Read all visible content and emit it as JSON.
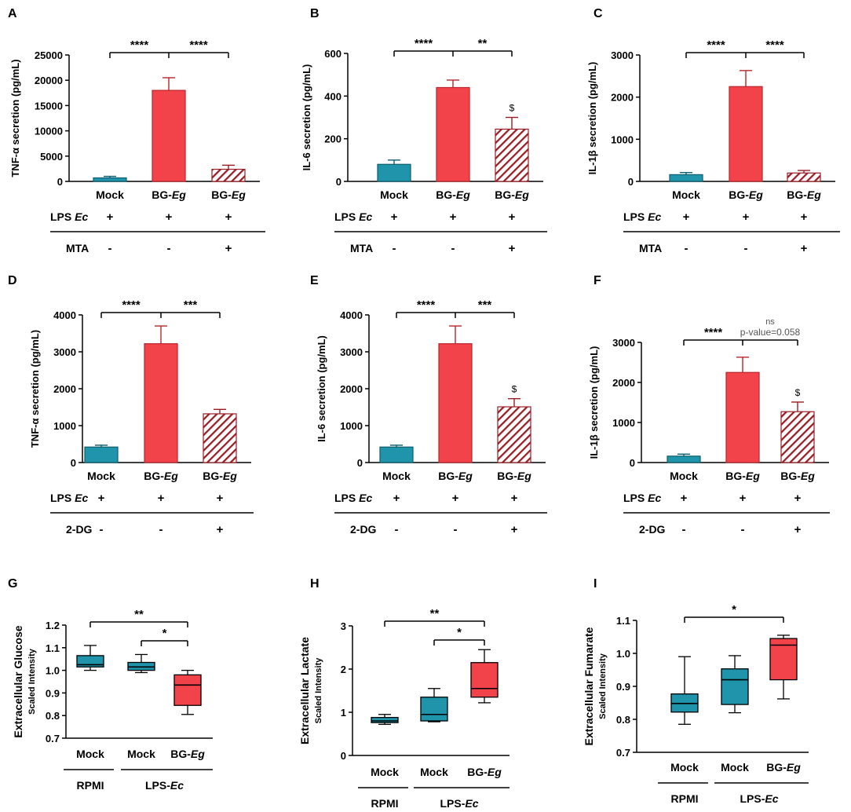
{
  "colors": {
    "mock": "#1f94ab",
    "bg": "#f3434a",
    "hatch": "#9a1d24",
    "axis": "#000000",
    "ns": "#555555"
  },
  "panel_letters": [
    "A",
    "B",
    "C",
    "D",
    "E",
    "F",
    "G",
    "H",
    "I"
  ],
  "row_labels": {
    "lps": "LPS",
    "lps_italic": "Ec",
    "mta": "MTA",
    "dg": "2-DG",
    "plus": "+",
    "minus": "-",
    "rpmi": "RPMI",
    "lps_group": "LPS-",
    "lps_group_italic": "Ec"
  },
  "chart_data": [
    {
      "letter": "A",
      "type": "bar",
      "ylabel": "TNF-α secretion (pg/mL)",
      "ylim": [
        0,
        25000
      ],
      "ticks": [
        0,
        5000,
        10000,
        15000,
        20000,
        25000
      ],
      "categories": [
        "Mock",
        "BG-Eg",
        "BG-Eg"
      ],
      "values": [
        700,
        18000,
        2400
      ],
      "errors": [
        300,
        2500,
        800
      ],
      "significance": [
        "****",
        "****"
      ],
      "dollar": false,
      "ns_text": "",
      "pvalue_text": "",
      "treatment": "MTA",
      "treatment_signs": [
        "-",
        "-",
        "+"
      ],
      "lps_signs": [
        "+",
        "+",
        "+"
      ]
    },
    {
      "letter": "B",
      "type": "bar",
      "ylabel": "IL-6 secretion (pg/mL)",
      "ylim": [
        0,
        600
      ],
      "ticks": [
        0,
        200,
        400,
        600
      ],
      "categories": [
        "Mock",
        "BG-Eg",
        "BG-Eg"
      ],
      "values": [
        80,
        440,
        245
      ],
      "errors": [
        20,
        35,
        55
      ],
      "significance": [
        "****",
        "**"
      ],
      "dollar": true,
      "ns_text": "",
      "pvalue_text": "",
      "treatment": "MTA",
      "treatment_signs": [
        "-",
        "-",
        "+"
      ],
      "lps_signs": [
        "+",
        "+",
        "+"
      ]
    },
    {
      "letter": "C",
      "type": "bar",
      "ylabel": "IL-1β secretion (pg/mL)",
      "ylim": [
        0,
        3000
      ],
      "ticks": [
        0,
        1000,
        2000,
        3000
      ],
      "categories": [
        "Mock",
        "BG-Eg",
        "BG-Eg"
      ],
      "values": [
        160,
        2250,
        200
      ],
      "errors": [
        50,
        380,
        60
      ],
      "significance": [
        "****",
        "****"
      ],
      "dollar": false,
      "ns_text": "",
      "pvalue_text": "",
      "treatment": "MTA",
      "treatment_signs": [
        "-",
        "-",
        "+"
      ],
      "lps_signs": [
        "+",
        "+",
        "+"
      ]
    },
    {
      "letter": "D",
      "type": "bar",
      "ylabel": "TNF-α secretion (pg/mL)",
      "ylim": [
        0,
        4000
      ],
      "ticks": [
        0,
        1000,
        2000,
        3000,
        4000
      ],
      "categories": [
        "Mock",
        "BG-Eg",
        "BG-Eg"
      ],
      "values": [
        420,
        3220,
        1320
      ],
      "errors": [
        50,
        480,
        120
      ],
      "significance": [
        "****",
        "***"
      ],
      "dollar": false,
      "ns_text": "",
      "pvalue_text": "",
      "treatment": "2-DG",
      "treatment_signs": [
        "-",
        "-",
        "+"
      ],
      "lps_signs": [
        "+",
        "+",
        "+"
      ]
    },
    {
      "letter": "E",
      "type": "bar",
      "ylabel": "IL-6 secretion (pg/mL)",
      "ylim": [
        0,
        4000
      ],
      "ticks": [
        0,
        1000,
        2000,
        3000,
        4000
      ],
      "categories": [
        "Mock",
        "BG-Eg",
        "BG-Eg"
      ],
      "values": [
        420,
        3220,
        1510
      ],
      "errors": [
        50,
        480,
        220
      ],
      "significance": [
        "****",
        "***"
      ],
      "dollar": true,
      "ns_text": "",
      "pvalue_text": "",
      "treatment": "2-DG",
      "treatment_signs": [
        "-",
        "-",
        "+"
      ],
      "lps_signs": [
        "+",
        "+",
        "+"
      ]
    },
    {
      "letter": "F",
      "type": "bar",
      "ylabel": "IL-1β secretion (pg/mL)",
      "ylim": [
        0,
        3000
      ],
      "ticks": [
        0,
        1000,
        2000,
        3000
      ],
      "categories": [
        "Mock",
        "BG-Eg",
        "BG-Eg"
      ],
      "values": [
        160,
        2250,
        1270
      ],
      "errors": [
        50,
        380,
        240
      ],
      "significance": [
        "****",
        ""
      ],
      "dollar": true,
      "ns_text": "ns",
      "pvalue_text": "p-value=0.058",
      "treatment": "2-DG",
      "treatment_signs": [
        "-",
        "-",
        "+"
      ],
      "lps_signs": [
        "+",
        "+",
        "+"
      ]
    },
    {
      "letter": "G",
      "type": "box",
      "ylabel": "Extracellular Glucose",
      "ylabel2": "Scaled Intensity",
      "ylim": [
        0.7,
        1.2
      ],
      "ticks": [
        "0.7",
        "0.8",
        "0.9",
        "1.0",
        "1.1",
        "1.2"
      ],
      "categories": [
        "Mock",
        "Mock",
        "BG-Eg"
      ],
      "boxes": [
        {
          "min": 1.0,
          "q1": 1.015,
          "median": 1.025,
          "q3": 1.065,
          "max": 1.11
        },
        {
          "min": 0.99,
          "q1": 1.0,
          "median": 1.015,
          "q3": 1.035,
          "max": 1.07
        },
        {
          "min": 0.805,
          "q1": 0.845,
          "median": 0.935,
          "q3": 0.98,
          "max": 1.0
        }
      ],
      "significance": [
        "**",
        "*"
      ]
    },
    {
      "letter": "H",
      "type": "box",
      "ylabel": "Extracellular Lactate",
      "ylabel2": "Scaled Intensity",
      "ylim": [
        0,
        3
      ],
      "ticks": [
        "0",
        "1",
        "2",
        "3"
      ],
      "categories": [
        "Mock",
        "Mock",
        "BG-Eg"
      ],
      "boxes": [
        {
          "min": 0.72,
          "q1": 0.76,
          "median": 0.8,
          "q3": 0.88,
          "max": 0.95
        },
        {
          "min": 0.78,
          "q1": 0.8,
          "median": 0.95,
          "q3": 1.35,
          "max": 1.55
        },
        {
          "min": 1.22,
          "q1": 1.35,
          "median": 1.55,
          "q3": 2.15,
          "max": 2.45
        }
      ],
      "significance": [
        "**",
        "*"
      ]
    },
    {
      "letter": "I",
      "type": "box",
      "ylabel": "Extracellular Fumarate",
      "ylabel2": "Scaled Intensity",
      "ylim": [
        0.7,
        1.1
      ],
      "ticks": [
        "0.7",
        "0.8",
        "0.9",
        "1.0",
        "1.1"
      ],
      "categories": [
        "Mock",
        "Mock",
        "BG-Eg"
      ],
      "boxes": [
        {
          "min": 0.785,
          "q1": 0.822,
          "median": 0.848,
          "q3": 0.877,
          "max": 0.99
        },
        {
          "min": 0.82,
          "q1": 0.845,
          "median": 0.92,
          "q3": 0.953,
          "max": 0.993
        },
        {
          "min": 0.862,
          "q1": 0.92,
          "median": 1.025,
          "q3": 1.045,
          "max": 1.055
        }
      ],
      "significance": [
        "*"
      ]
    }
  ]
}
